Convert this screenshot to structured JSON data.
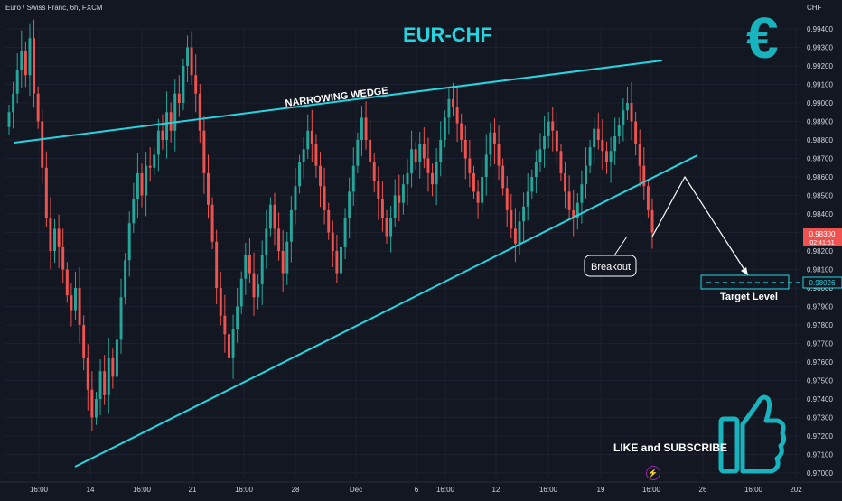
{
  "header": {
    "symbol": "Euro / Swiss Franc, 6h, FXCM",
    "currency": "CHF",
    "title": "EUR-CHF",
    "logo_glyph": "€"
  },
  "annotations": {
    "wedge_label": "NARROWING WEDGE",
    "breakout": "Breakout",
    "target": "Target Level",
    "cta": "LIKE and SUBSCRIBE",
    "thumb_icon": "thumbs-up-icon",
    "bolt_icon": "lightning-icon"
  },
  "colors": {
    "background": "#131722",
    "up": "#26a69a",
    "down": "#ef5350",
    "line": "#26d4e0",
    "accent": "#19b3bd"
  },
  "chart_data": {
    "type": "candlestick",
    "ylim": [
      0.9699,
      0.9946
    ],
    "y_ticks": [
      "0.99400",
      "0.99300",
      "0.99200",
      "0.99100",
      "0.99000",
      "0.98900",
      "0.98800",
      "0.98700",
      "0.98600",
      "0.98500",
      "0.98400",
      "0.98300",
      "0.98200",
      "0.98100",
      "0.98000",
      "0.97900",
      "0.97800",
      "0.97700",
      "0.97600",
      "0.97500",
      "0.97400",
      "0.97300",
      "0.97200",
      "0.97100",
      "0.97000"
    ],
    "x_ticks": [
      "16:00",
      "14",
      "16:00",
      "21",
      "16:00",
      "28",
      "Dec",
      "6",
      "16:00",
      "12",
      "16:00",
      "19",
      "16:00",
      "26",
      "16:00",
      "202"
    ],
    "price_label": {
      "value": "0.98300",
      "countdown": "02:41:51"
    },
    "target_label": "0.98026",
    "closes": [
      0.9895,
      0.9905,
      0.9918,
      0.9928,
      0.9915,
      0.9935,
      0.9905,
      0.989,
      0.9865,
      0.9838,
      0.982,
      0.9832,
      0.9822,
      0.981,
      0.9796,
      0.9788,
      0.98,
      0.978,
      0.9762,
      0.9745,
      0.973,
      0.974,
      0.9755,
      0.9742,
      0.9762,
      0.9752,
      0.9772,
      0.9795,
      0.9815,
      0.9835,
      0.9848,
      0.9862,
      0.985,
      0.9866,
      0.9865,
      0.9872,
      0.9885,
      0.988,
      0.9895,
      0.9885,
      0.9905,
      0.99,
      0.992,
      0.993,
      0.9915,
      0.9905,
      0.9885,
      0.9862,
      0.9845,
      0.9825,
      0.98,
      0.9785,
      0.9775,
      0.9762,
      0.9778,
      0.979,
      0.9805,
      0.9818,
      0.9808,
      0.9795,
      0.9802,
      0.9818,
      0.9832,
      0.9845,
      0.9832,
      0.982,
      0.9808,
      0.9825,
      0.9842,
      0.9855,
      0.9868,
      0.9875,
      0.9885,
      0.9878,
      0.9866,
      0.9855,
      0.9842,
      0.983,
      0.982,
      0.9808,
      0.9822,
      0.9838,
      0.9852,
      0.9866,
      0.988,
      0.9892,
      0.988,
      0.9868,
      0.9858,
      0.9848,
      0.9838,
      0.9828,
      0.9838,
      0.985,
      0.9846,
      0.9856,
      0.9862,
      0.9875,
      0.9868,
      0.9878,
      0.987,
      0.9862,
      0.9856,
      0.9868,
      0.988,
      0.9892,
      0.9902,
      0.9898,
      0.9889,
      0.988,
      0.987,
      0.9862,
      0.9852,
      0.9846,
      0.986,
      0.9872,
      0.9884,
      0.9878,
      0.9866,
      0.9854,
      0.9842,
      0.9832,
      0.9824,
      0.9836,
      0.9844,
      0.9852,
      0.986,
      0.9868,
      0.9875,
      0.9882,
      0.989,
      0.9885,
      0.9874,
      0.9862,
      0.9852,
      0.9842,
      0.9838,
      0.9846,
      0.9856,
      0.9866,
      0.9876,
      0.9886,
      0.988,
      0.9874,
      0.9868,
      0.9874,
      0.9882,
      0.9888,
      0.9896,
      0.99,
      0.989,
      0.9878,
      0.9866,
      0.9855,
      0.9842,
      0.983
    ]
  }
}
